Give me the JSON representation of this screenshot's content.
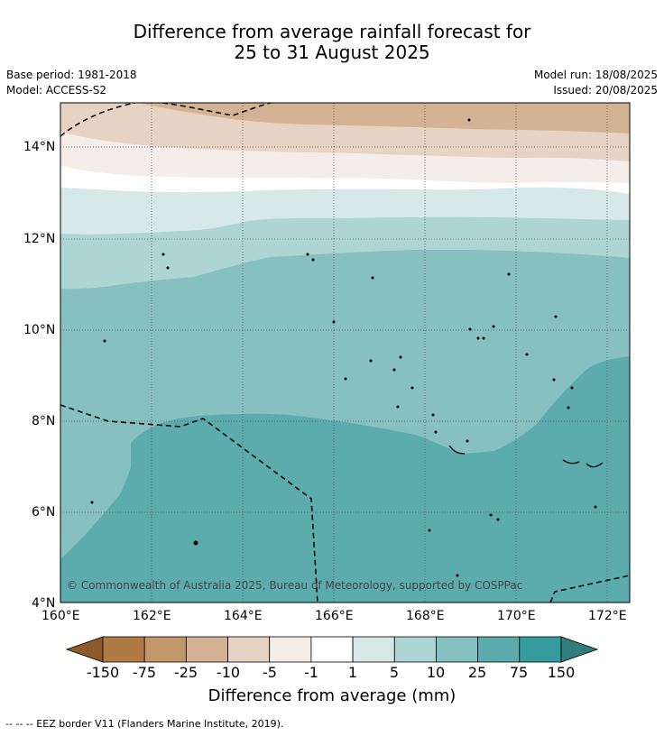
{
  "title_line1": "Difference from average rainfall forecast for",
  "title_line2": "25 to 31 August 2025",
  "base_period": "Base period: 1981-2018",
  "model": "Model: ACCESS-S2",
  "model_run": "Model run: 18/08/2025",
  "issued": "Issued: 20/08/2025",
  "copyright": "© Commonwealth of Australia 2025, Bureau of Meteorology, supported by COSPPac",
  "lat_ticks": [
    "14°N",
    "12°N",
    "10°N",
    "8°N",
    "6°N",
    "4°N"
  ],
  "lon_ticks": [
    "160°E",
    "162°E",
    "164°E",
    "166°E",
    "168°E",
    "170°E",
    "172°E"
  ],
  "colorbar": {
    "label": "Difference from average (mm)",
    "ticks": [
      "-150",
      "-75",
      "-25",
      "-10",
      "-5",
      "-1",
      "1",
      "5",
      "10",
      "25",
      "75",
      "150"
    ],
    "colors": [
      "#8c5a2b",
      "#b07a45",
      "#c4976b",
      "#d4b394",
      "#e6d3c3",
      "#f5ede8",
      "#ffffff",
      "#d6e9e8",
      "#acd5d4",
      "#86c0c0",
      "#5cacad",
      "#359b9c",
      "#2f7d7d"
    ]
  },
  "footer": "--  --  -- EEZ border V11 (Flanders Marine Institute, 2019)."
}
